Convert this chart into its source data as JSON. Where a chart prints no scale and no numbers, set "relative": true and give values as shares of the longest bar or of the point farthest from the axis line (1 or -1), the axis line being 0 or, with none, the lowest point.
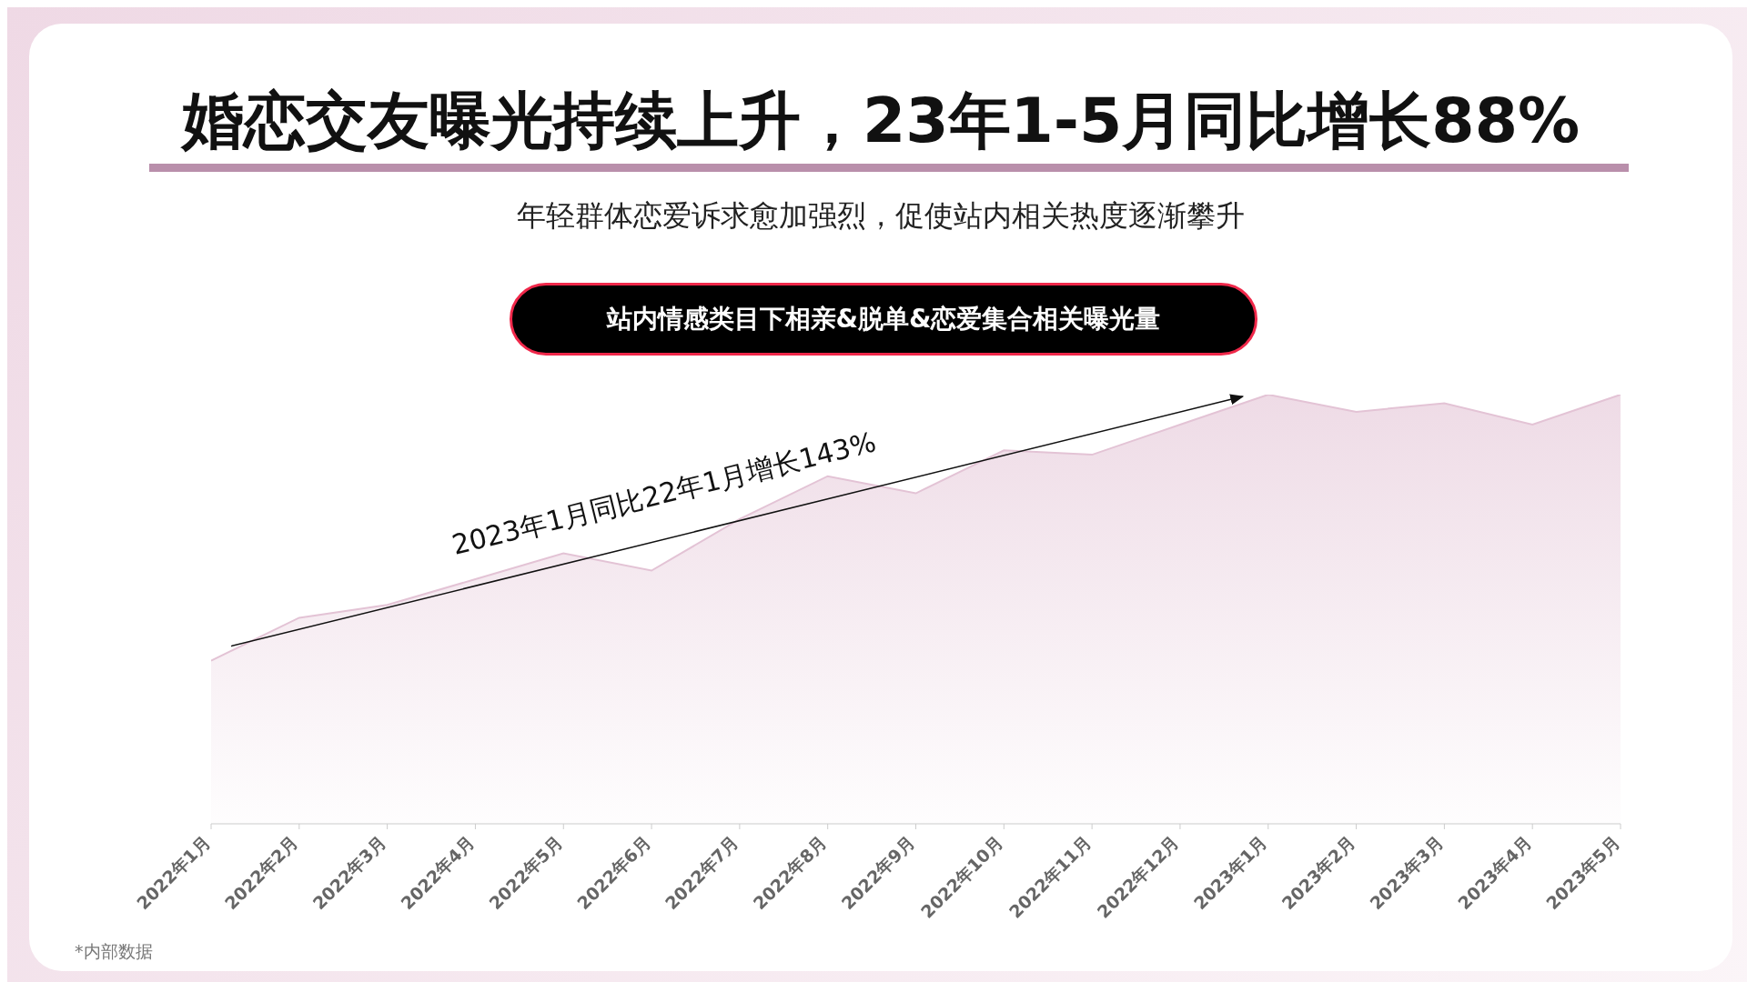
{
  "chart_data": {
    "type": "area",
    "title": "婚恋交友曝光持续上升，23年1-5月同比增长88%",
    "subtitle": "年轻群体恋爱诉求愈加强烈，促使站内相关热度逐渐攀升",
    "ylabel": "站内情感类目下相亲&脱单&恋爱集合相关曝光量",
    "relative": true,
    "color": "#e3c3d5",
    "categories": [
      "2022年1月",
      "2022年2月",
      "2022年3月",
      "2022年4月",
      "2022年5月",
      "2022年6月",
      "2022年7月",
      "2022年8月",
      "2022年9月",
      "2022年10月",
      "2022年11月",
      "2022年12月",
      "2023年1月",
      "2023年2月",
      "2023年3月",
      "2023年4月",
      "2023年5月"
    ],
    "values": [
      0.38,
      0.48,
      0.51,
      0.57,
      0.63,
      0.59,
      0.71,
      0.81,
      0.77,
      0.87,
      0.86,
      0.93,
      1,
      0.96,
      0.98,
      0.93,
      1
    ],
    "annotations": [
      "2023年1月同比22年1月增长143%",
      "*内部数据"
    ],
    "grid": false,
    "legend": false
  }
}
